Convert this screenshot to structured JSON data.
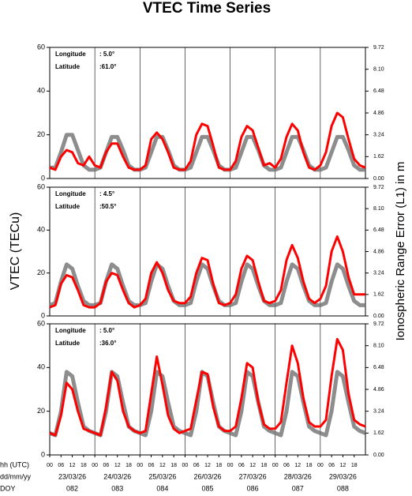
{
  "title": "VTEC Time Series",
  "y_label": "VTEC (TECu)",
  "y2_label": "Ionospheric Range Error (L1) in m",
  "row_labels": [
    "hh (UTC)",
    "dd/mm/yy",
    "DOY"
  ],
  "chart_data": [
    {
      "type": "line",
      "annotations": [
        {
          "label": "Longitude",
          "value": ":  5.0°"
        },
        {
          "label": "Latitude",
          "value": ":61.0°"
        }
      ],
      "x": [
        0,
        3,
        6,
        9,
        12,
        15,
        18,
        21,
        24,
        27,
        30,
        33,
        36,
        39,
        42,
        45,
        48,
        51,
        54,
        57,
        60,
        63,
        66,
        69,
        72,
        75,
        78,
        81,
        84,
        87,
        90,
        93,
        96,
        99,
        102,
        105,
        108,
        111,
        114,
        117,
        120,
        123,
        126,
        129,
        132,
        135,
        138,
        141,
        144,
        147,
        150,
        153,
        156,
        159,
        162,
        165,
        168
      ],
      "xlim": [
        0,
        168
      ],
      "xgrid": [
        24,
        48,
        72,
        96,
        120,
        144
      ],
      "ylim": [
        0,
        60
      ],
      "yticks": [
        0,
        20,
        40,
        60
      ],
      "y2lim": [
        0,
        9.72
      ],
      "y2ticks": [
        {
          "value": 0,
          "label": "0.00"
        },
        {
          "value": 1.62,
          "label": "1.62"
        },
        {
          "value": 3.24,
          "label": "3.24"
        },
        {
          "value": 4.86,
          "label": "4.86"
        },
        {
          "value": 6.48,
          "label": "6.48"
        },
        {
          "value": 8.1,
          "label": "8.10"
        },
        {
          "value": 9.72,
          "label": "9.72"
        }
      ],
      "series": [
        {
          "color": "#707070",
          "values": [
            5,
            5,
            12,
            20,
            20,
            13,
            6,
            4,
            4,
            5,
            12,
            19,
            19,
            13,
            6,
            4,
            4,
            5,
            12,
            19,
            19,
            13,
            6,
            4,
            4,
            5,
            12,
            19,
            19,
            13,
            6,
            4,
            4,
            5,
            12,
            19,
            19,
            13,
            6,
            4,
            4,
            5,
            12,
            19,
            19,
            13,
            6,
            4,
            4,
            5,
            12,
            19,
            19,
            13,
            6,
            4,
            4
          ]
        },
        {
          "color": "#ff0000",
          "values": [
            5,
            4,
            10,
            13,
            12,
            7,
            6,
            10,
            6,
            5,
            12,
            16,
            16,
            10,
            5,
            4,
            4,
            6,
            18,
            21,
            18,
            12,
            5,
            4,
            4,
            8,
            20,
            25,
            24,
            15,
            5,
            4,
            4,
            8,
            19,
            24,
            22,
            14,
            6,
            7,
            5,
            9,
            19,
            25,
            22,
            12,
            5,
            4,
            6,
            12,
            24,
            30,
            28,
            18,
            9,
            6,
            5
          ]
        }
      ]
    },
    {
      "type": "line",
      "annotations": [
        {
          "label": "Longitude",
          "value": ":  4.5°"
        },
        {
          "label": "Latitude",
          "value": ":50.5°"
        }
      ],
      "x": [
        0,
        3,
        6,
        9,
        12,
        15,
        18,
        21,
        24,
        27,
        30,
        33,
        36,
        39,
        42,
        45,
        48,
        51,
        54,
        57,
        60,
        63,
        66,
        69,
        72,
        75,
        78,
        81,
        84,
        87,
        90,
        93,
        96,
        99,
        102,
        105,
        108,
        111,
        114,
        117,
        120,
        123,
        126,
        129,
        132,
        135,
        138,
        141,
        144,
        147,
        150,
        153,
        156,
        159,
        162,
        165,
        168
      ],
      "xlim": [
        0,
        168
      ],
      "xgrid": [
        24,
        48,
        72,
        96,
        120,
        144
      ],
      "ylim": [
        0,
        60
      ],
      "yticks": [
        0,
        20,
        40,
        60
      ],
      "y2lim": [
        0,
        9.72
      ],
      "y2ticks": [
        {
          "value": 0,
          "label": "0.00"
        },
        {
          "value": 1.62,
          "label": "1.62"
        },
        {
          "value": 3.24,
          "label": "3.24"
        },
        {
          "value": 4.86,
          "label": "4.86"
        },
        {
          "value": 6.48,
          "label": "6.48"
        },
        {
          "value": 8.1,
          "label": "8.10"
        },
        {
          "value": 9.72,
          "label": "9.72"
        }
      ],
      "series": [
        {
          "color": "#707070",
          "values": [
            5,
            6,
            16,
            24,
            22,
            14,
            7,
            5,
            5,
            6,
            16,
            24,
            22,
            14,
            7,
            5,
            5,
            6,
            16,
            24,
            22,
            14,
            7,
            5,
            5,
            6,
            16,
            24,
            22,
            14,
            7,
            5,
            5,
            6,
            16,
            24,
            22,
            14,
            7,
            5,
            5,
            6,
            16,
            24,
            22,
            14,
            7,
            5,
            5,
            6,
            16,
            24,
            22,
            14,
            7,
            5,
            5
          ]
        },
        {
          "color": "#ff0000",
          "values": [
            4,
            5,
            15,
            19,
            18,
            12,
            5,
            4,
            4,
            6,
            16,
            20,
            19,
            12,
            6,
            4,
            5,
            8,
            20,
            25,
            20,
            12,
            7,
            6,
            6,
            9,
            20,
            27,
            26,
            15,
            6,
            5,
            6,
            10,
            22,
            28,
            26,
            16,
            7,
            6,
            7,
            12,
            26,
            33,
            27,
            16,
            8,
            6,
            8,
            14,
            30,
            37,
            30,
            18,
            10,
            10,
            10
          ]
        }
      ]
    },
    {
      "type": "line",
      "annotations": [
        {
          "label": "Longitude",
          "value": ":  5.0°"
        },
        {
          "label": "Latitude",
          "value": ":36.0°"
        }
      ],
      "x": [
        0,
        3,
        6,
        9,
        12,
        15,
        18,
        21,
        24,
        27,
        30,
        33,
        36,
        39,
        42,
        45,
        48,
        51,
        54,
        57,
        60,
        63,
        66,
        69,
        72,
        75,
        78,
        81,
        84,
        87,
        90,
        93,
        96,
        99,
        102,
        105,
        108,
        111,
        114,
        117,
        120,
        123,
        126,
        129,
        132,
        135,
        138,
        141,
        144,
        147,
        150,
        153,
        156,
        159,
        162,
        165,
        168
      ],
      "xlim": [
        0,
        168
      ],
      "xgrid": [
        24,
        48,
        72,
        96,
        120,
        144
      ],
      "xticks": [
        {
          "value": 0,
          "label": "00"
        },
        {
          "value": 6,
          "label": "06"
        },
        12,
        18,
        {
          "value": 24,
          "label": "00"
        },
        {
          "value": 30,
          "label": "06"
        },
        {
          "value": 36,
          "label": "12"
        },
        {
          "value": 42,
          "label": "18"
        },
        {
          "value": 48,
          "label": "00"
        },
        {
          "value": 54,
          "label": "06"
        },
        {
          "value": 60,
          "label": "12"
        },
        {
          "value": 66,
          "label": "18"
        },
        {
          "value": 72,
          "label": "00"
        },
        {
          "value": 78,
          "label": "06"
        },
        {
          "value": 84,
          "label": "12"
        },
        {
          "value": 90,
          "label": "18"
        },
        {
          "value": 96,
          "label": "00"
        },
        {
          "value": 102,
          "label": "06"
        },
        {
          "value": 108,
          "label": "12"
        },
        {
          "value": 114,
          "label": "18"
        },
        {
          "value": 120,
          "label": "00"
        },
        {
          "value": 126,
          "label": "06"
        },
        {
          "value": 132,
          "label": "12"
        },
        {
          "value": 138,
          "label": "18"
        },
        {
          "value": 144,
          "label": "00"
        },
        {
          "value": 150,
          "label": "06"
        },
        {
          "value": 156,
          "label": "12"
        },
        {
          "value": 162,
          "label": "18"
        }
      ],
      "days": [
        {
          "date": "23/03/26",
          "doy": "082"
        },
        {
          "date": "24/03/26",
          "doy": "083"
        },
        {
          "date": "25/03/26",
          "doy": "084"
        },
        {
          "date": "26/03/26",
          "doy": "085"
        },
        {
          "date": "27/03/26",
          "doy": "086"
        },
        {
          "date": "28/03/26",
          "doy": "087"
        },
        {
          "date": "29/03/26",
          "doy": "088"
        }
      ],
      "ylim": [
        0,
        60
      ],
      "yticks": [
        0,
        20,
        40,
        60
      ],
      "y2lim": [
        0,
        9.72
      ],
      "y2ticks": [
        {
          "value": 0,
          "label": "0.00"
        },
        {
          "value": 1.62,
          "label": "1.62"
        },
        {
          "value": 3.24,
          "label": "3.24"
        },
        {
          "value": 4.86,
          "label": "4.86"
        },
        {
          "value": 6.48,
          "label": "6.48"
        },
        {
          "value": 8.1,
          "label": "8.10"
        },
        {
          "value": 9.72,
          "label": "9.72"
        }
      ],
      "series": [
        {
          "color": "#707070",
          "values": [
            10,
            9,
            20,
            38,
            36,
            24,
            13,
            11,
            10,
            9,
            20,
            38,
            36,
            24,
            13,
            11,
            10,
            9,
            20,
            38,
            36,
            24,
            13,
            11,
            10,
            9,
            20,
            38,
            36,
            24,
            13,
            11,
            10,
            9,
            20,
            38,
            36,
            24,
            13,
            11,
            10,
            9,
            20,
            38,
            36,
            24,
            13,
            11,
            10,
            9,
            20,
            38,
            36,
            24,
            13,
            11,
            10
          ]
        },
        {
          "color": "#ff0000",
          "values": [
            10,
            9,
            18,
            33,
            30,
            20,
            12,
            11,
            10,
            9,
            22,
            38,
            34,
            20,
            13,
            11,
            10,
            11,
            28,
            45,
            32,
            18,
            12,
            10,
            11,
            12,
            25,
            38,
            37,
            22,
            13,
            11,
            11,
            13,
            26,
            42,
            40,
            24,
            14,
            12,
            12,
            15,
            33,
            50,
            42,
            26,
            15,
            13,
            13,
            16,
            36,
            53,
            48,
            28,
            16,
            14,
            13
          ]
        }
      ]
    }
  ]
}
